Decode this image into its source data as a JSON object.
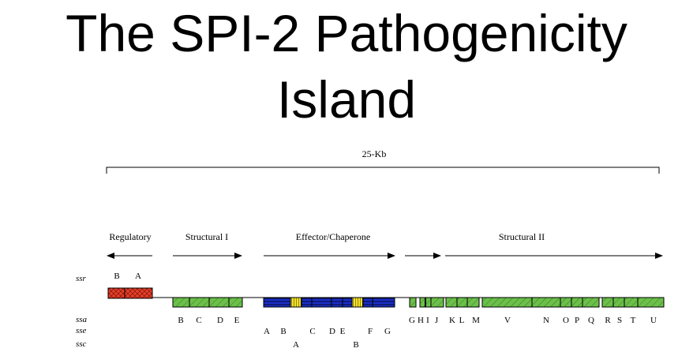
{
  "title": {
    "line1": "The SPI-2 Pathogenicity",
    "line2": "Island"
  },
  "scale_label": "25-Kb",
  "sections": {
    "regulatory": "Regulatory",
    "structural_1": "Structural I",
    "effector": "Effector/Chaperone",
    "structural_2": "Structural II"
  },
  "row_labels": {
    "ssr": "ssr",
    "ssa": "ssa",
    "sse": "sse",
    "ssc": "ssc"
  },
  "genes": {
    "ssr": [
      "B",
      "A"
    ],
    "ssa_1": [
      "B",
      "C",
      "D",
      "E"
    ],
    "ssa_2": [
      "G",
      "H",
      "I",
      "J",
      "K",
      "L",
      "M",
      "V",
      "N",
      "O",
      "P",
      "Q",
      "R",
      "S",
      "T",
      "U"
    ],
    "sse": [
      "A",
      "B",
      "C",
      "D",
      "E",
      "F",
      "G"
    ],
    "ssc": [
      "A",
      "B"
    ]
  },
  "colors": {
    "regulatory": "#e8402a",
    "structural": "#6cc04a",
    "effector": "#1a2fc8",
    "chaperone": "#f2e02a"
  }
}
